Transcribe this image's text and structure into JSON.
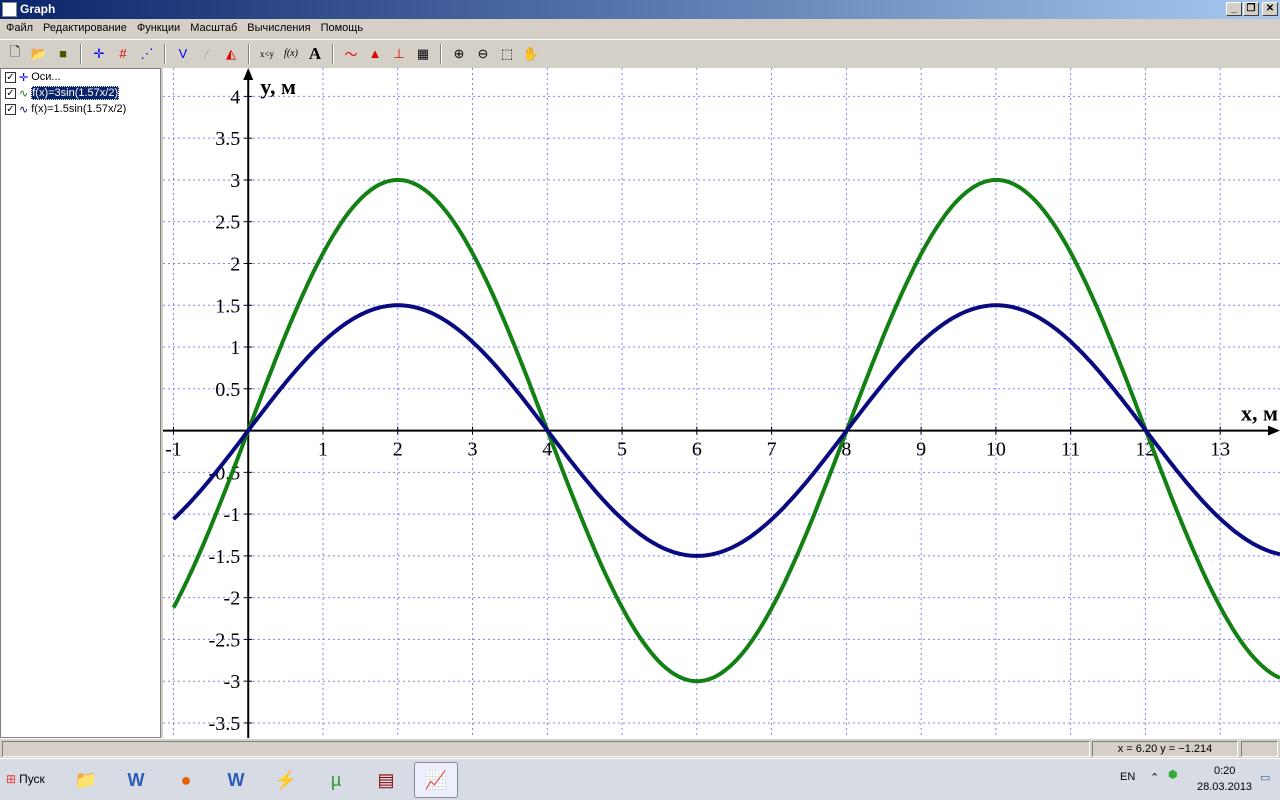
{
  "window": {
    "title": "Graph"
  },
  "menu": [
    "Файл",
    "Редактирование",
    "Функции",
    "Масштаб",
    "Вычисления",
    "Помощь"
  ],
  "toolbar_icons": [
    "new-icon",
    "open-icon",
    "save-icon",
    "axes-icon",
    "insert-function-icon",
    "point-series-icon",
    "tangent-icon",
    "relation-icon",
    "shading-icon",
    "x-lt-y-icon",
    "fx-icon",
    "text-icon",
    "trendline-icon",
    "area-icon",
    "evaluate-icon",
    "table-icon",
    "zoom-in-icon",
    "zoom-out-icon",
    "zoom-square-icon",
    "hand-icon"
  ],
  "toolbar_text": {
    "xy": "x<y",
    "fx": "f(x)",
    "text": "A"
  },
  "sidebar": {
    "items": [
      {
        "label": "Оси...",
        "checked": true,
        "color": "#0000ff"
      },
      {
        "label": "f(x)=3sin(1.57x/2)",
        "checked": true,
        "color": "#008000",
        "selected": true
      },
      {
        "label": "f(x)=1.5sin(1.57x/2)",
        "checked": true,
        "color": "#000080"
      }
    ]
  },
  "status": {
    "coords": "x = 6.20    y = −1.214"
  },
  "taskbar": {
    "start": "Пуск",
    "lang": "EN",
    "time": "0:20",
    "date": "28.03.2013"
  },
  "chart_data": {
    "type": "line",
    "xlabel": "x, м",
    "ylabel": "y, м",
    "xlim": [
      -1.14,
      13.8
    ],
    "ylim": [
      -3.68,
      4.34
    ],
    "grid": true,
    "xticks": [
      "-1",
      "1",
      "2",
      "3",
      "4",
      "5",
      "6",
      "7",
      "8",
      "9",
      "10",
      "11",
      "12",
      "13"
    ],
    "yticks": [
      "4",
      "3.5",
      "3",
      "2.5",
      "2",
      "1.5",
      "1",
      "0.5",
      "-0.5",
      "-1",
      "-1.5",
      "-2",
      "-2.5",
      "-3",
      "-3.5"
    ],
    "series": [
      {
        "name": "f(x)=3sin(1.57x/2)",
        "amplitude": 3,
        "k": 0.785,
        "color": "#138013",
        "x_start": -1
      },
      {
        "name": "f(x)=1.5sin(1.57x/2)",
        "amplitude": 1.5,
        "k": 0.785,
        "color": "#0a0a80",
        "x_start": -1
      }
    ]
  }
}
